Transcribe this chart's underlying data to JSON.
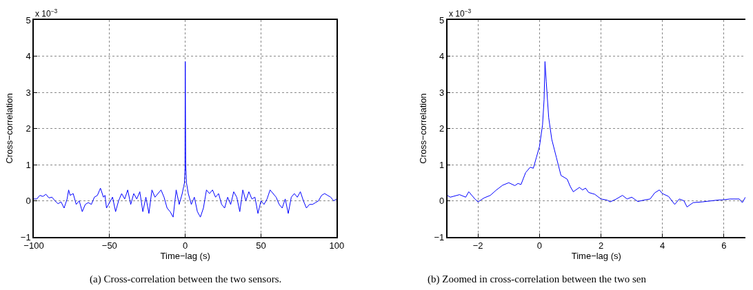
{
  "chart_data": [
    {
      "type": "line",
      "xlabel": "Time−lag (s)",
      "ylabel": "Cross−correlation",
      "annotations": [
        "x 10$^{−3}$",
        "(a) Cross-correlation between the two sensors."
      ],
      "x": [
        -100,
        -98,
        -96,
        -94,
        -92,
        -90,
        -88,
        -86,
        -84,
        -82,
        -80,
        -78,
        -77,
        -76,
        -74,
        -72,
        -70,
        -68,
        -66,
        -64,
        -62,
        -60,
        -58,
        -56,
        -54,
        -53,
        -52,
        -50,
        -48,
        -46,
        -44,
        -42,
        -40,
        -38,
        -36,
        -34,
        -32,
        -30,
        -28,
        -26,
        -24,
        -22,
        -20,
        -18,
        -16,
        -14,
        -12,
        -10,
        -8,
        -6,
        -4,
        -2,
        -1,
        -0.5,
        -0.2,
        0,
        0.3,
        0.8,
        2,
        4,
        6,
        8,
        10,
        12,
        14,
        16,
        18,
        20,
        22,
        24,
        26,
        28,
        30,
        32,
        34,
        36,
        38,
        40,
        42,
        44,
        46,
        48,
        50,
        52,
        54,
        56,
        58,
        60,
        62,
        64,
        66,
        68,
        70,
        72,
        74,
        76,
        78,
        80,
        82,
        84,
        86,
        88,
        90,
        92,
        94,
        96,
        98,
        100
      ],
      "series": [
        {
          "color": "#0000ff",
          "values": [
            0.05,
            0.05,
            0.15,
            0.12,
            0.18,
            0.08,
            0.1,
            0.0,
            -0.08,
            -0.03,
            -0.2,
            0.05,
            0.3,
            0.15,
            0.2,
            -0.1,
            0.0,
            -0.3,
            -0.1,
            -0.05,
            -0.1,
            0.1,
            0.15,
            0.35,
            0.1,
            0.15,
            -0.2,
            -0.05,
            0.1,
            -0.3,
            0.0,
            0.2,
            0.05,
            0.3,
            -0.1,
            0.2,
            0.05,
            0.25,
            -0.3,
            0.1,
            -0.35,
            0.3,
            0.1,
            0.2,
            0.3,
            0.1,
            -0.2,
            -0.3,
            -0.45,
            0.3,
            -0.1,
            0.2,
            0.4,
            0.5,
            0.9,
            3.85,
            1.0,
            0.5,
            0.2,
            -0.1,
            0.1,
            -0.3,
            -0.45,
            -0.2,
            0.3,
            0.2,
            0.3,
            0.1,
            0.2,
            -0.1,
            -0.2,
            0.1,
            -0.1,
            0.25,
            0.1,
            -0.3,
            0.3,
            0.0,
            0.25,
            0.05,
            0.1,
            -0.35,
            0.0,
            -0.1,
            0.05,
            0.3,
            0.2,
            0.1,
            -0.1,
            -0.2,
            0.05,
            -0.35,
            0.1,
            0.2,
            0.1,
            0.25,
            0.0,
            -0.2,
            -0.1,
            -0.1,
            -0.05,
            0.0,
            0.15,
            0.2,
            0.15,
            0.1,
            0.0,
            0.05
          ]
        }
      ],
      "xlim": [
        -100,
        100
      ],
      "xticks": [
        -100,
        -50,
        0,
        50,
        100
      ],
      "ylim": [
        -1,
        5
      ],
      "yticks": [
        -1,
        0,
        1,
        2,
        3,
        4,
        5
      ],
      "grid": true,
      "line_style": "solid",
      "marker": "none"
    },
    {
      "type": "line",
      "xlabel": "Time−lag (s)",
      "ylabel": "Cross−correlation",
      "annotations": [
        "x 10$^{−3}$",
        "(b) Zoomed in cross-correlation between the two sen"
      ],
      "x": [
        -3,
        -2.9,
        -2.6,
        -2.4,
        -2.3,
        -2.1,
        -2.0,
        -1.8,
        -1.6,
        -1.4,
        -1.2,
        -1.0,
        -0.8,
        -0.7,
        -0.6,
        -0.45,
        -0.3,
        -0.2,
        -0.1,
        0,
        0.1,
        0.15,
        0.18,
        0.22,
        0.3,
        0.4,
        0.55,
        0.7,
        0.9,
        1.0,
        1.1,
        1.3,
        1.4,
        1.5,
        1.6,
        1.8,
        2.0,
        2.2,
        2.3,
        2.5,
        2.7,
        2.85,
        3.0,
        3.2,
        3.4,
        3.6,
        3.75,
        3.9,
        4.0,
        4.2,
        4.4,
        4.55,
        4.7,
        4.8,
        5.0,
        5.3,
        5.6,
        5.8,
        6.0,
        6.2,
        6.5,
        6.6,
        6.7
      ],
      "series": [
        {
          "color": "#0000ff",
          "values": [
            0.15,
            0.1,
            0.17,
            0.1,
            0.25,
            0.05,
            -0.03,
            0.08,
            0.15,
            0.3,
            0.43,
            0.5,
            0.42,
            0.48,
            0.45,
            0.78,
            0.93,
            0.9,
            1.2,
            1.5,
            2.1,
            2.8,
            3.85,
            3.3,
            2.3,
            1.7,
            1.2,
            0.7,
            0.6,
            0.4,
            0.25,
            0.37,
            0.3,
            0.35,
            0.23,
            0.18,
            0.05,
            0.02,
            -0.03,
            0.05,
            0.15,
            0.05,
            0.1,
            -0.02,
            0.02,
            0.05,
            0.22,
            0.3,
            0.2,
            0.12,
            -0.1,
            0.05,
            0.0,
            -0.17,
            -0.05,
            -0.03,
            0.0,
            0.02,
            0.03,
            0.05,
            0.05,
            -0.05,
            0.1
          ]
        }
      ],
      "xlim": [
        -3,
        6.7
      ],
      "xticks": [
        -2,
        0,
        2,
        4,
        6
      ],
      "ylim": [
        -1,
        5
      ],
      "yticks": [
        -1,
        0,
        1,
        2,
        3,
        4,
        5
      ],
      "grid": true,
      "line_style": "solid",
      "marker": "none"
    }
  ]
}
